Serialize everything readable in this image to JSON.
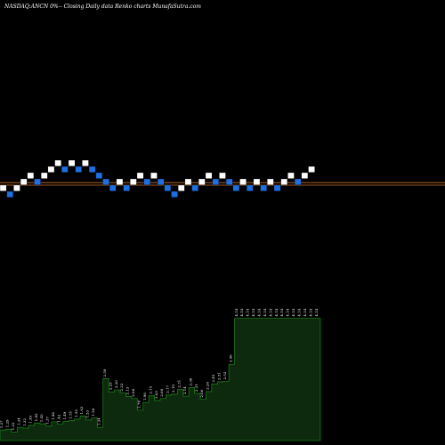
{
  "header": {
    "title": "NASDAQ:ANCN  0%--  Closing Daily data  Renko  charts MunafaSutra.com"
  },
  "colors": {
    "background": "#000000",
    "up_brick": "#ffffff",
    "down_brick": "#1e6fe0",
    "line": "#c8712a",
    "volume_fill": "#0e2a0e",
    "volume_stroke": "#1a7a1a",
    "label": "#ffffff"
  },
  "chart_data": [
    {
      "type": "renko",
      "title": "NASDAQ:ANCN  0%--  Closing Daily data  Renko  charts MunafaSutra.com",
      "bricks": [
        {
          "dir": "up",
          "level": 1
        },
        {
          "dir": "down",
          "level": 0
        },
        {
          "dir": "up",
          "level": 1
        },
        {
          "dir": "up",
          "level": 2
        },
        {
          "dir": "up",
          "level": 3
        },
        {
          "dir": "down",
          "level": 2
        },
        {
          "dir": "up",
          "level": 3
        },
        {
          "dir": "up",
          "level": 4
        },
        {
          "dir": "up",
          "level": 5
        },
        {
          "dir": "down",
          "level": 4
        },
        {
          "dir": "up",
          "level": 5
        },
        {
          "dir": "down",
          "level": 4
        },
        {
          "dir": "up",
          "level": 5
        },
        {
          "dir": "down",
          "level": 4
        },
        {
          "dir": "down",
          "level": 3
        },
        {
          "dir": "down",
          "level": 2
        },
        {
          "dir": "down",
          "level": 1
        },
        {
          "dir": "up",
          "level": 2
        },
        {
          "dir": "down",
          "level": 1
        },
        {
          "dir": "up",
          "level": 2
        },
        {
          "dir": "up",
          "level": 3
        },
        {
          "dir": "down",
          "level": 2
        },
        {
          "dir": "up",
          "level": 3
        },
        {
          "dir": "down",
          "level": 2
        },
        {
          "dir": "down",
          "level": 1
        },
        {
          "dir": "down",
          "level": 0
        },
        {
          "dir": "up",
          "level": 1
        },
        {
          "dir": "up",
          "level": 2
        },
        {
          "dir": "down",
          "level": 1
        },
        {
          "dir": "up",
          "level": 2
        },
        {
          "dir": "up",
          "level": 3
        },
        {
          "dir": "down",
          "level": 2
        },
        {
          "dir": "up",
          "level": 3
        },
        {
          "dir": "down",
          "level": 2
        },
        {
          "dir": "down",
          "level": 1
        },
        {
          "dir": "up",
          "level": 2
        },
        {
          "dir": "down",
          "level": 1
        },
        {
          "dir": "up",
          "level": 2
        },
        {
          "dir": "down",
          "level": 1
        },
        {
          "dir": "up",
          "level": 2
        },
        {
          "dir": "down",
          "level": 1
        },
        {
          "dir": "up",
          "level": 2
        },
        {
          "dir": "up",
          "level": 3
        },
        {
          "dir": "down",
          "level": 2
        },
        {
          "dir": "up",
          "level": 3
        },
        {
          "dir": "up",
          "level": 4
        }
      ],
      "reference_lines": [
        1.5,
        1.9
      ]
    },
    {
      "type": "area",
      "labels": [
        "1.27",
        "1.29",
        "1.22",
        "1.34",
        "1.32",
        "1.39",
        "1.45",
        "1.43",
        "1.37",
        "1.48",
        "1.42",
        "1.49",
        "1.51",
        "1.55",
        "1.63",
        "1.53",
        "1.58",
        "1.34",
        "2.59",
        "2.25",
        "2.30",
        "2.22",
        "2.13",
        "2.08",
        "1.78",
        "1.98",
        "2.15",
        "2.03",
        "2.08",
        "2.17",
        "2.19",
        "2.31",
        "2.14",
        "2.36",
        "2.21",
        "2.06",
        "2.26",
        "2.45",
        "2.51",
        "2.52",
        "2.96",
        "4.14",
        "4.14",
        "4.14",
        "4.14",
        "4.14",
        "4.14",
        "4.14",
        "4.14",
        "4.14",
        "4.14",
        "4.14",
        "4.14",
        "4.14",
        "4.14",
        "4.14"
      ],
      "values": [
        1.27,
        1.29,
        1.22,
        1.34,
        1.32,
        1.39,
        1.45,
        1.43,
        1.37,
        1.48,
        1.42,
        1.49,
        1.51,
        1.55,
        1.63,
        1.53,
        1.58,
        1.34,
        2.59,
        2.25,
        2.3,
        2.22,
        2.13,
        2.08,
        1.78,
        1.98,
        2.15,
        2.03,
        2.08,
        2.17,
        2.19,
        2.31,
        2.14,
        2.36,
        2.21,
        2.06,
        2.26,
        2.45,
        2.51,
        2.52,
        2.96,
        4.14,
        4.14,
        4.14,
        4.14,
        4.14,
        4.14,
        4.14,
        4.14,
        4.14,
        4.14,
        4.14,
        4.14,
        4.14,
        4.14,
        4.14
      ],
      "ylim": [
        1.0,
        4.2
      ]
    }
  ]
}
